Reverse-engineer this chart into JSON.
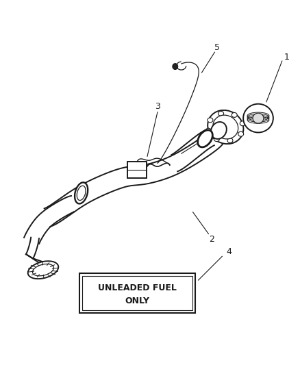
{
  "bg_color": "#ffffff",
  "line_color": "#1a1a1a",
  "fig_width": 4.39,
  "fig_height": 5.33,
  "dpi": 100,
  "label_box_text_line1": "UNLEADED FUEL",
  "label_box_text_line2": "ONLY",
  "part_labels": [
    "1",
    "2",
    "3",
    "4",
    "5"
  ],
  "font_size_labels": 9,
  "font_size_box": 9
}
